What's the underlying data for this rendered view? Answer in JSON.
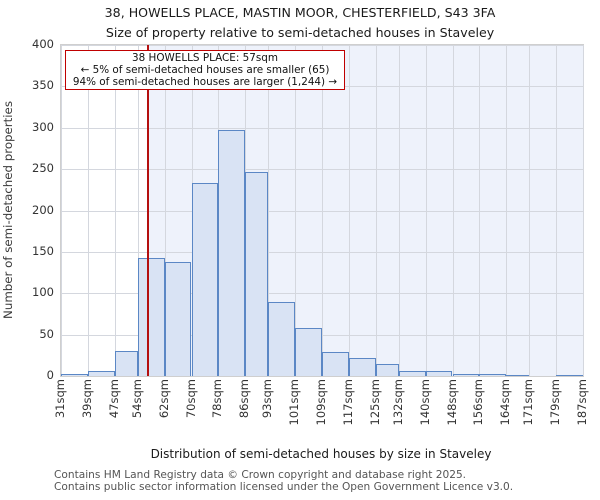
{
  "title": "38, HOWELLS PLACE, MASTIN MOOR, CHESTERFIELD, S43 3FA",
  "subtitle": "Size of property relative to semi-detached houses in Staveley",
  "annotation": {
    "line1": "38 HOWELLS PLACE: 57sqm",
    "line2": "← 5% of semi-detached houses are smaller (65)",
    "line3": "94% of semi-detached houses are larger (1,244) →"
  },
  "footer": {
    "line1": "Contains HM Land Registry data © Crown copyright and database right 2025.",
    "line2": "Contains public sector information licensed under the Open Government Licence v3.0."
  },
  "chart_data": {
    "type": "bar",
    "title": "Size of property relative to semi-detached houses in Staveley",
    "xlabel": "Distribution of semi-detached houses by size in Staveley",
    "ylabel": "Number of semi-detached properties",
    "bin_edges_sqm": [
      31,
      39,
      47,
      54,
      62,
      70,
      78,
      86,
      93,
      101,
      109,
      117,
      125,
      132,
      140,
      148,
      156,
      164,
      171,
      179,
      187
    ],
    "x_tick_labels": [
      "31sqm",
      "39sqm",
      "47sqm",
      "54sqm",
      "62sqm",
      "70sqm",
      "78sqm",
      "86sqm",
      "93sqm",
      "101sqm",
      "109sqm",
      "117sqm",
      "125sqm",
      "132sqm",
      "140sqm",
      "148sqm",
      "156sqm",
      "164sqm",
      "171sqm",
      "179sqm",
      "187sqm"
    ],
    "values": [
      2,
      6,
      30,
      143,
      138,
      233,
      297,
      247,
      90,
      58,
      29,
      22,
      14,
      6,
      6,
      3,
      2,
      1,
      0,
      1
    ],
    "yticks": [
      0,
      50,
      100,
      150,
      200,
      250,
      300,
      350,
      400
    ],
    "ylim": [
      0,
      400
    ],
    "grid": true,
    "legend": null,
    "marker_value_sqm": 57,
    "colors": {
      "bar_fill": "#d9e3f4",
      "bar_border": "#5b87c5",
      "marker_line": "#b40f0f",
      "annotation_border": "#c00000",
      "grid": "#d4d7de",
      "bg_right_of_marker": "#eef2fb",
      "bg_left_of_marker": "#ffffff"
    }
  }
}
